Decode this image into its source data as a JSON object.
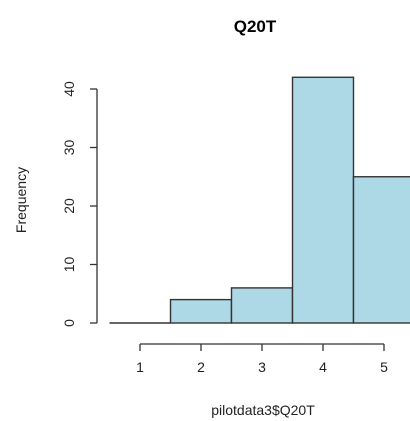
{
  "chart_data": {
    "type": "bar",
    "title": "Q20T",
    "xlabel": "pilotdata3$Q20T",
    "ylabel": "Frequency",
    "categories": [
      "1",
      "2",
      "3",
      "4",
      "5"
    ],
    "values": [
      0,
      4,
      6,
      42,
      25
    ],
    "x_ticks": [
      "1",
      "2",
      "3",
      "4",
      "5"
    ],
    "y_ticks": [
      "0",
      "10",
      "20",
      "30",
      "40"
    ],
    "ylim": [
      0,
      42
    ],
    "bar_color": "#add8e6",
    "grid": false
  }
}
